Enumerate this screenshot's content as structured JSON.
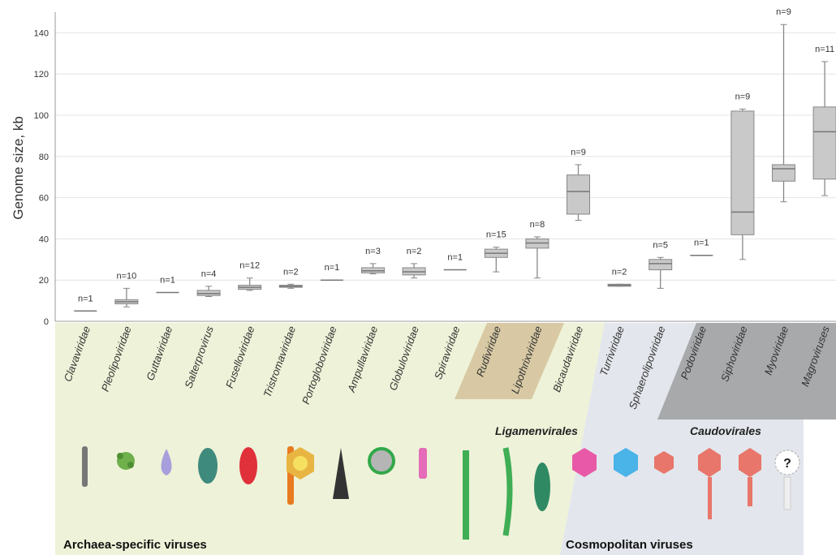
{
  "chart_data": {
    "type": "box",
    "y_label": "Genome size, kb",
    "categories": [
      "Clavaviridae",
      "Pleolipoviridae",
      "Guttaviridae",
      "Salterprovirus",
      "Fuselloviridae",
      "Tristromaviridae",
      "Portogloboviridae",
      "Ampullaviridae",
      "Globuloviridae",
      "Spiraviridae",
      "Rudiviridae",
      "Lipothrixviridae",
      "Bicaudaviridae",
      "Turriviridae",
      "Sphaerolipoviridae",
      "Podoviridae",
      "Siphoviridae",
      "Myoviridae",
      "Magroviruses"
    ],
    "n_labels": [
      "n=1",
      "n=10",
      "n=1",
      "n=4",
      "n=12",
      "n=2",
      "n=1",
      "n=3",
      "n=2",
      "n=1",
      "n=15",
      "n=8",
      "n=9",
      "n=2",
      "n=5",
      "n=1",
      "n=9",
      "n=9",
      "n=11"
    ],
    "boxes": [
      {
        "median": 5
      },
      {
        "min": 7,
        "q1": 8.5,
        "median": 9.5,
        "q3": 10.5,
        "max": 16
      },
      {
        "median": 14
      },
      {
        "min": 12,
        "q1": 12.5,
        "median": 13.5,
        "q3": 15,
        "max": 17
      },
      {
        "min": 15,
        "q1": 15.5,
        "median": 16.5,
        "q3": 17.5,
        "max": 21
      },
      {
        "min": 16,
        "q1": 16.5,
        "median": 17,
        "q3": 17.5,
        "max": 18
      },
      {
        "median": 20
      },
      {
        "min": 23,
        "q1": 23.5,
        "median": 24.5,
        "q3": 26,
        "max": 28
      },
      {
        "min": 21,
        "q1": 22.5,
        "median": 24,
        "q3": 26,
        "max": 28
      },
      {
        "median": 25
      },
      {
        "min": 24,
        "q1": 31,
        "median": 33,
        "q3": 35,
        "max": 36
      },
      {
        "min": 21,
        "q1": 35.5,
        "median": 38,
        "q3": 40,
        "max": 41
      },
      {
        "min": 49,
        "q1": 52,
        "median": 63,
        "q3": 71,
        "max": 76
      },
      {
        "min": 17,
        "q1": 17,
        "median": 17.5,
        "q3": 18,
        "max": 18
      },
      {
        "min": 16,
        "q1": 25,
        "median": 28,
        "q3": 30,
        "max": 31
      },
      {
        "median": 32
      },
      {
        "min": 30,
        "q1": 42,
        "median": 53,
        "q3": 102,
        "max": 103
      },
      {
        "min": 58,
        "q1": 68,
        "median": 74,
        "q3": 76,
        "max": 144
      },
      {
        "min": 61,
        "q1": 69,
        "median": 92,
        "q3": 104,
        "max": 126
      }
    ],
    "ylim": [
      0,
      150
    ],
    "yticks": [
      0,
      20,
      40,
      60,
      80,
      100,
      120,
      140
    ],
    "grid": true,
    "box_color": "#c9c9c9",
    "groups": {
      "order": "Ligamenvirales",
      "order2": "Caudovirales",
      "left": "Archaea-specific viruses",
      "right": "Cosmopolitan viruses"
    }
  }
}
